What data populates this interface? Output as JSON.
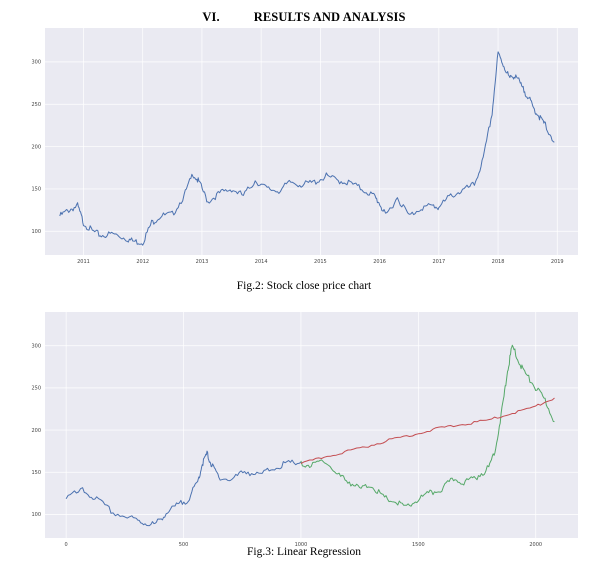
{
  "heading": {
    "number": "VI.",
    "title": "RESULTS AND ANALYSIS"
  },
  "captions": {
    "fig2": "Fig.2: Stock close price chart",
    "fig3": "Fig.3: Linear Regression"
  },
  "colors": {
    "panel_bg": "#eaeaf2",
    "grid": "#ffffff",
    "actual": "#4c72b0",
    "test": "#55a868",
    "predicted": "#c44e52"
  },
  "chart_data": [
    {
      "type": "line",
      "title": "",
      "xlabel": "",
      "ylabel": "",
      "x_tick_labels": [
        "2011",
        "2012",
        "2013",
        "2014",
        "2015",
        "2016",
        "2017",
        "2018",
        "2019"
      ],
      "y_tick_labels": [
        "100",
        "150",
        "200",
        "250",
        "300"
      ],
      "xlim": [
        2010.35,
        2019.35
      ],
      "ylim": [
        72,
        340
      ],
      "grid": true,
      "series": [
        {
          "x": [
            2010.6,
            2010.75,
            2010.9,
            2011.0,
            2011.15,
            2011.3,
            2011.5,
            2011.7,
            2011.85,
            2012.0,
            2012.15,
            2012.3,
            2012.5,
            2012.7,
            2012.85,
            2012.95,
            2013.1,
            2013.3,
            2013.5,
            2013.7,
            2013.9,
            2014.1,
            2014.3,
            2014.5,
            2014.7,
            2014.9,
            2015.1,
            2015.3,
            2015.5,
            2015.7,
            2015.9,
            2016.0,
            2016.1,
            2016.3,
            2016.5,
            2016.7,
            2016.9,
            2017.0,
            2017.2,
            2017.4,
            2017.6,
            2017.75,
            2017.9,
            2018.0,
            2018.1,
            2018.2,
            2018.3,
            2018.4,
            2018.5,
            2018.6,
            2018.7,
            2018.8,
            2018.95
          ],
          "y": [
            118,
            125,
            130,
            110,
            100,
            95,
            97,
            92,
            88,
            87,
            110,
            118,
            120,
            142,
            168,
            158,
            135,
            145,
            150,
            142,
            160,
            150,
            148,
            158,
            155,
            158,
            165,
            160,
            157,
            150,
            142,
            133,
            118,
            140,
            118,
            128,
            130,
            128,
            142,
            148,
            155,
            185,
            240,
            310,
            295,
            280,
            285,
            270,
            260,
            245,
            235,
            225,
            205
          ]
        }
      ]
    },
    {
      "type": "line",
      "title": "",
      "xlabel": "",
      "ylabel": "",
      "x_tick_labels": [
        "0",
        "500",
        "1000",
        "1500",
        "2000"
      ],
      "y_tick_labels": [
        "100",
        "150",
        "200",
        "250",
        "300"
      ],
      "xlim": [
        -90,
        2180
      ],
      "ylim": [
        72,
        340
      ],
      "grid": true,
      "series": [
        {
          "x": [
            0,
            70,
            130,
            200,
            280,
            330,
            380,
            420,
            470,
            520,
            560,
            580,
            600,
            620,
            650,
            700,
            760,
            820,
            880,
            940,
            1000
          ],
          "y": [
            120,
            128,
            118,
            102,
            95,
            90,
            88,
            100,
            110,
            118,
            138,
            160,
            172,
            158,
            145,
            140,
            152,
            146,
            155,
            160,
            162
          ]
        },
        {
          "x": [
            1000,
            1050,
            1100,
            1150,
            1200,
            1250,
            1300,
            1350,
            1400,
            1450,
            1500,
            1550,
            1600,
            1650,
            1700,
            1750,
            1800,
            1830,
            1860,
            1880,
            1900,
            1930,
            1960,
            2000,
            2040,
            2080
          ],
          "y": [
            160,
            158,
            165,
            148,
            140,
            130,
            135,
            120,
            115,
            108,
            118,
            125,
            130,
            142,
            138,
            145,
            155,
            180,
            230,
            270,
            300,
            280,
            265,
            250,
            235,
            210
          ]
        },
        {
          "x": [
            1000,
            1100,
            1200,
            1300,
            1400,
            1500,
            1600,
            1700,
            1800,
            1900,
            2000,
            2080
          ],
          "y": [
            160,
            168,
            175,
            182,
            190,
            196,
            203,
            207,
            212,
            220,
            228,
            238
          ]
        }
      ]
    }
  ]
}
